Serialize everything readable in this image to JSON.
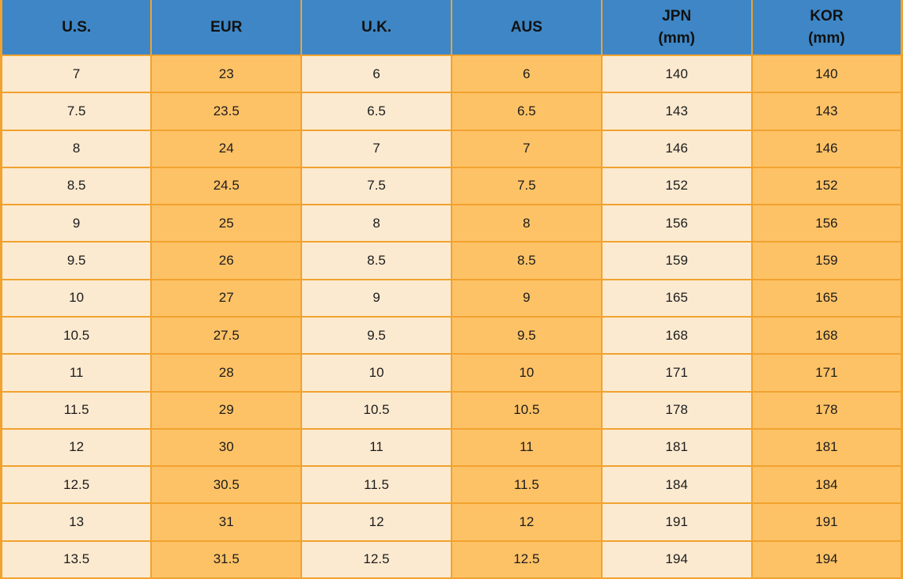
{
  "colors": {
    "header_bg": "#3E86C5",
    "header_text": "#111111",
    "cell_light": "#FCEAD0",
    "cell_dark": "#FEC266",
    "border": "#F1A22F",
    "cell_text": "#1C1C1C"
  },
  "table": {
    "columns": [
      {
        "label": "U.S.",
        "sub": "",
        "tone": "light"
      },
      {
        "label": "EUR",
        "sub": "",
        "tone": "dark"
      },
      {
        "label": "U.K.",
        "sub": "",
        "tone": "light"
      },
      {
        "label": "AUS",
        "sub": "",
        "tone": "dark"
      },
      {
        "label": "JPN",
        "sub": "(mm)",
        "tone": "light"
      },
      {
        "label": "KOR",
        "sub": "(mm)",
        "tone": "dark"
      }
    ],
    "rows": [
      [
        "7",
        "23",
        "6",
        "6",
        "140",
        "140"
      ],
      [
        "7.5",
        "23.5",
        "6.5",
        "6.5",
        "143",
        "143"
      ],
      [
        "8",
        "24",
        "7",
        "7",
        "146",
        "146"
      ],
      [
        "8.5",
        "24.5",
        "7.5",
        "7.5",
        "152",
        "152"
      ],
      [
        "9",
        "25",
        "8",
        "8",
        "156",
        "156"
      ],
      [
        "9.5",
        "26",
        "8.5",
        "8.5",
        "159",
        "159"
      ],
      [
        "10",
        "27",
        "9",
        "9",
        "165",
        "165"
      ],
      [
        "10.5",
        "27.5",
        "9.5",
        "9.5",
        "168",
        "168"
      ],
      [
        "11",
        "28",
        "10",
        "10",
        "171",
        "171"
      ],
      [
        "11.5",
        "29",
        "10.5",
        "10.5",
        "178",
        "178"
      ],
      [
        "12",
        "30",
        "11",
        "11",
        "181",
        "181"
      ],
      [
        "12.5",
        "30.5",
        "11.5",
        "11.5",
        "184",
        "184"
      ],
      [
        "13",
        "31",
        "12",
        "12",
        "191",
        "191"
      ],
      [
        "13.5",
        "31.5",
        "12.5",
        "12.5",
        "194",
        "194"
      ]
    ]
  },
  "chart_data": {
    "type": "table",
    "title": "",
    "columns": [
      "U.S.",
      "EUR",
      "U.K.",
      "AUS",
      "JPN (mm)",
      "KOR (mm)"
    ],
    "rows": [
      [
        "7",
        "23",
        "6",
        "6",
        "140",
        "140"
      ],
      [
        "7.5",
        "23.5",
        "6.5",
        "6.5",
        "143",
        "143"
      ],
      [
        "8",
        "24",
        "7",
        "7",
        "146",
        "146"
      ],
      [
        "8.5",
        "24.5",
        "7.5",
        "7.5",
        "152",
        "152"
      ],
      [
        "9",
        "25",
        "8",
        "8",
        "156",
        "156"
      ],
      [
        "9.5",
        "26",
        "8.5",
        "8.5",
        "159",
        "159"
      ],
      [
        "10",
        "27",
        "9",
        "9",
        "165",
        "165"
      ],
      [
        "10.5",
        "27.5",
        "9.5",
        "9.5",
        "168",
        "168"
      ],
      [
        "11",
        "28",
        "10",
        "10",
        "171",
        "171"
      ],
      [
        "11.5",
        "29",
        "10.5",
        "10.5",
        "178",
        "178"
      ],
      [
        "12",
        "30",
        "11",
        "11",
        "181",
        "181"
      ],
      [
        "12.5",
        "30.5",
        "11.5",
        "11.5",
        "184",
        "184"
      ],
      [
        "13",
        "31",
        "12",
        "12",
        "191",
        "191"
      ],
      [
        "13.5",
        "31.5",
        "12.5",
        "12.5",
        "194",
        "194"
      ]
    ]
  }
}
